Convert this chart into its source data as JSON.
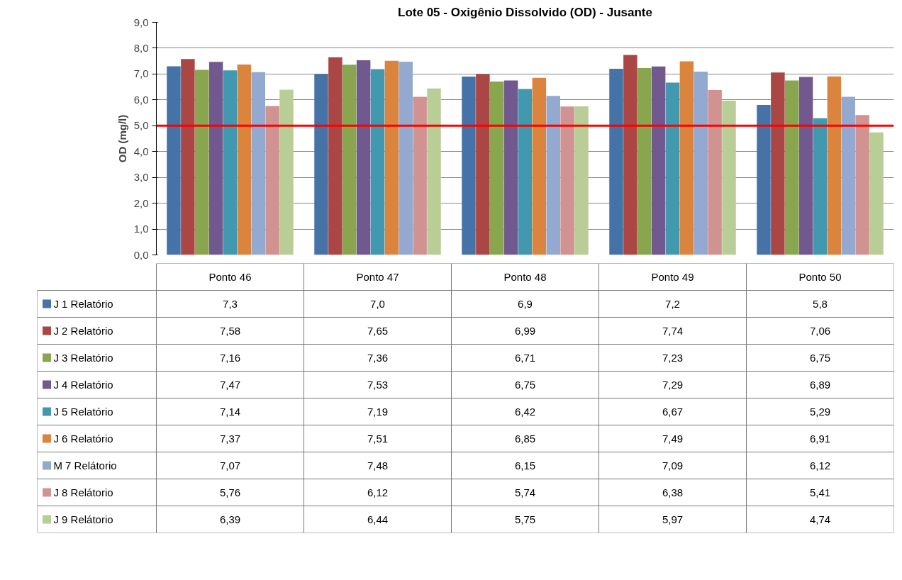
{
  "chart_data": {
    "type": "bar",
    "title": "Lote 05 - Oxigênio Dissolvido (OD) - Jusante",
    "ylabel": "OD (mg/l)",
    "categories": [
      "Ponto 46",
      "Ponto 47",
      "Ponto 48",
      "Ponto 49",
      "Ponto 50"
    ],
    "ylim": [
      0,
      9
    ],
    "yticks": [
      {
        "value": 0,
        "label": "0,0"
      },
      {
        "value": 1,
        "label": "1,0"
      },
      {
        "value": 2,
        "label": "2,0"
      },
      {
        "value": 3,
        "label": "3,0"
      },
      {
        "value": 4,
        "label": "4,0"
      },
      {
        "value": 5,
        "label": "5,0"
      },
      {
        "value": 6,
        "label": "6,0"
      },
      {
        "value": 7,
        "label": "7,0"
      },
      {
        "value": 8,
        "label": "8,0"
      },
      {
        "value": 9,
        "label": "9,0"
      }
    ],
    "grid": "y",
    "legend": "bottom",
    "ref_lines": [
      {
        "axis": "y",
        "value": 5,
        "color": "#ff0000"
      }
    ],
    "series": [
      {
        "name": "J 1 Relatório",
        "color": "#4572a7",
        "values": [
          7.3,
          7.0,
          6.9,
          7.2,
          5.8
        ],
        "value_labels": [
          "7,3",
          "7,0",
          "6,9",
          "7,2",
          "5,8"
        ]
      },
      {
        "name": "J 2 Relatório",
        "color": "#aa4643",
        "values": [
          7.58,
          7.65,
          6.99,
          7.74,
          7.06
        ],
        "value_labels": [
          "7,58",
          "7,65",
          "6,99",
          "7,74",
          "7,06"
        ]
      },
      {
        "name": "J 3 Relatório",
        "color": "#89a54e",
        "values": [
          7.16,
          7.36,
          6.71,
          7.23,
          6.75
        ],
        "value_labels": [
          "7,16",
          "7,36",
          "6,71",
          "7,23",
          "6,75"
        ]
      },
      {
        "name": "J 4 Relatório",
        "color": "#71588f",
        "values": [
          7.47,
          7.53,
          6.75,
          7.29,
          6.89
        ],
        "value_labels": [
          "7,47",
          "7,53",
          "6,75",
          "7,29",
          "6,89"
        ]
      },
      {
        "name": "J 5 Relatório",
        "color": "#4198af",
        "values": [
          7.14,
          7.19,
          6.42,
          6.67,
          5.29
        ],
        "value_labels": [
          "7,14",
          "7,19",
          "6,42",
          "6,67",
          "5,29"
        ]
      },
      {
        "name": "J 6 Relatório",
        "color": "#db843d",
        "values": [
          7.37,
          7.51,
          6.85,
          7.49,
          6.91
        ],
        "value_labels": [
          "7,37",
          "7,51",
          "6,85",
          "7,49",
          "6,91"
        ]
      },
      {
        "name": "M 7 Relátorio",
        "color": "#93a9cf",
        "values": [
          7.07,
          7.48,
          6.15,
          7.09,
          6.12
        ],
        "value_labels": [
          "7,07",
          "7,48",
          "6,15",
          "7,09",
          "6,12"
        ]
      },
      {
        "name": "J 8 Relátorio",
        "color": "#d19392",
        "values": [
          5.76,
          6.12,
          5.74,
          6.38,
          5.41
        ],
        "value_labels": [
          "5,76",
          "6,12",
          "5,74",
          "6,38",
          "5,41"
        ]
      },
      {
        "name": "J 9 Relátorio",
        "color": "#b9cd96",
        "values": [
          6.39,
          6.44,
          5.75,
          5.97,
          4.74
        ],
        "value_labels": [
          "6,39",
          "6,44",
          "5,75",
          "5,97",
          "4,74"
        ]
      }
    ]
  }
}
